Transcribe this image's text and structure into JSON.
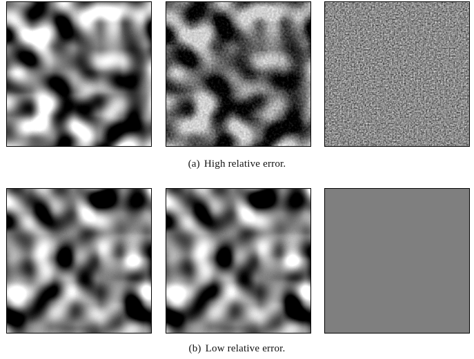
{
  "figure": {
    "rows": [
      {
        "id": "a",
        "tag": "(a)",
        "caption": "High relative error.",
        "panels": [
          {
            "name": "panel-a-left",
            "kind": "field",
            "seed": 11
          },
          {
            "name": "panel-a-middle",
            "kind": "field-noisy",
            "seed": 11
          },
          {
            "name": "panel-a-right",
            "kind": "noise",
            "seed": 29
          }
        ]
      },
      {
        "id": "b",
        "tag": "(b)",
        "caption": "Low relative error.",
        "panels": [
          {
            "name": "panel-b-left",
            "kind": "field",
            "seed": 47
          },
          {
            "name": "panel-b-middle",
            "kind": "field",
            "seed": 47
          },
          {
            "name": "panel-b-right",
            "kind": "flat",
            "seed": 53
          }
        ]
      }
    ]
  }
}
